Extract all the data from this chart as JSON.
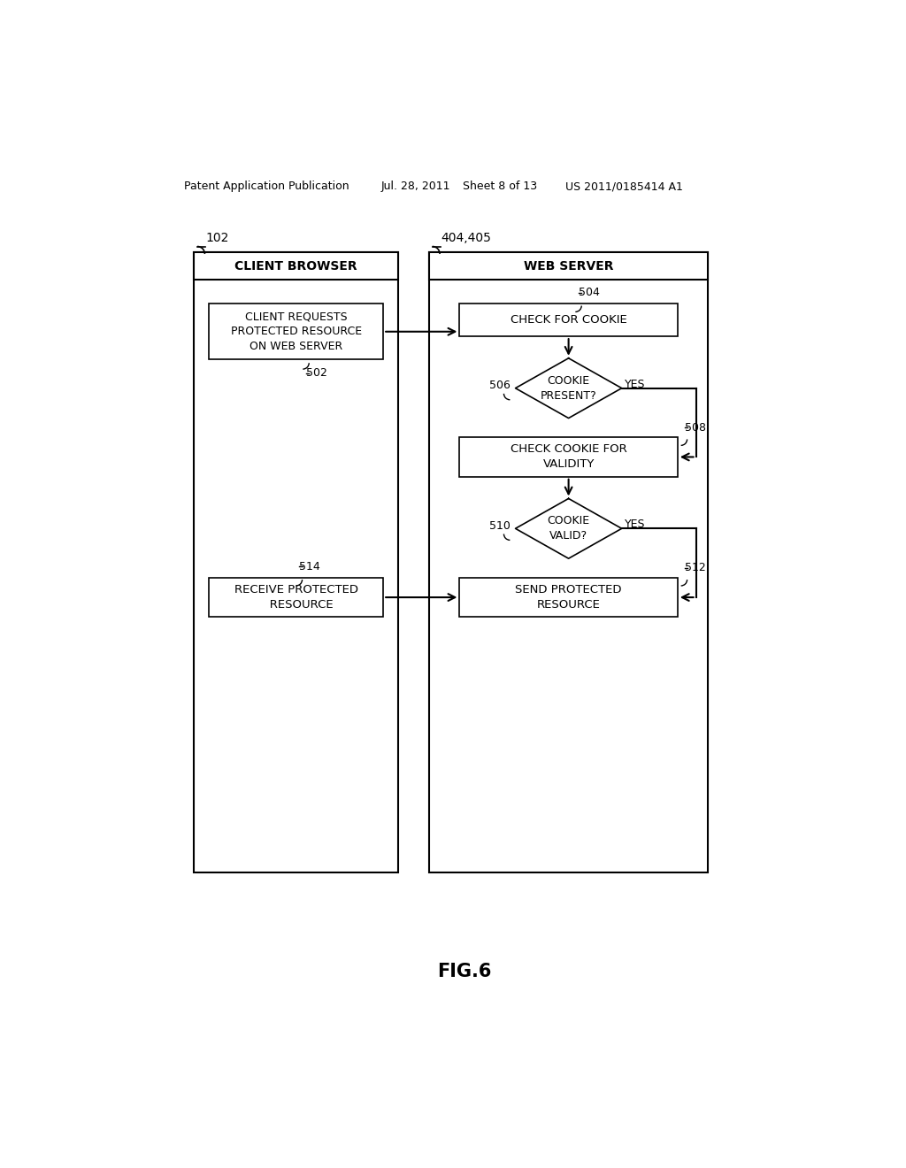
{
  "bg_color": "#ffffff",
  "header_line1": "Patent Application Publication",
  "header_line2": "Jul. 28, 2011",
  "header_line3": "Sheet 8 of 13",
  "header_line4": "US 2011/0185414 A1",
  "fig_label": "FIG.6",
  "label_102": "102",
  "label_404405": "404,405",
  "cb_title": "CLIENT BROWSER",
  "ws_title": "WEB SERVER",
  "box_502_text": "CLIENT REQUESTS\nPROTECTED RESOURCE\nON WEB SERVER",
  "box_502_label": "502",
  "box_504_text": "CHECK FOR COOKIE",
  "box_504_label": "504",
  "diamond_506_text": "COOKIE\nPRESENT?",
  "diamond_506_label": "506",
  "diamond_506_yes": "YES",
  "box_508_text": "CHECK COOKIE FOR\nVALIDITY",
  "box_508_label": "508",
  "diamond_510_text": "COOKIE\nVALID?",
  "diamond_510_label": "510",
  "diamond_510_yes": "YES",
  "box_512_text": "SEND PROTECTED\nRESOURCE",
  "box_512_label": "512",
  "box_514_text": "RECEIVE PROTECTED\n   RESOURCE",
  "box_514_label": "514",
  "line_color": "#000000",
  "text_color": "#000000"
}
